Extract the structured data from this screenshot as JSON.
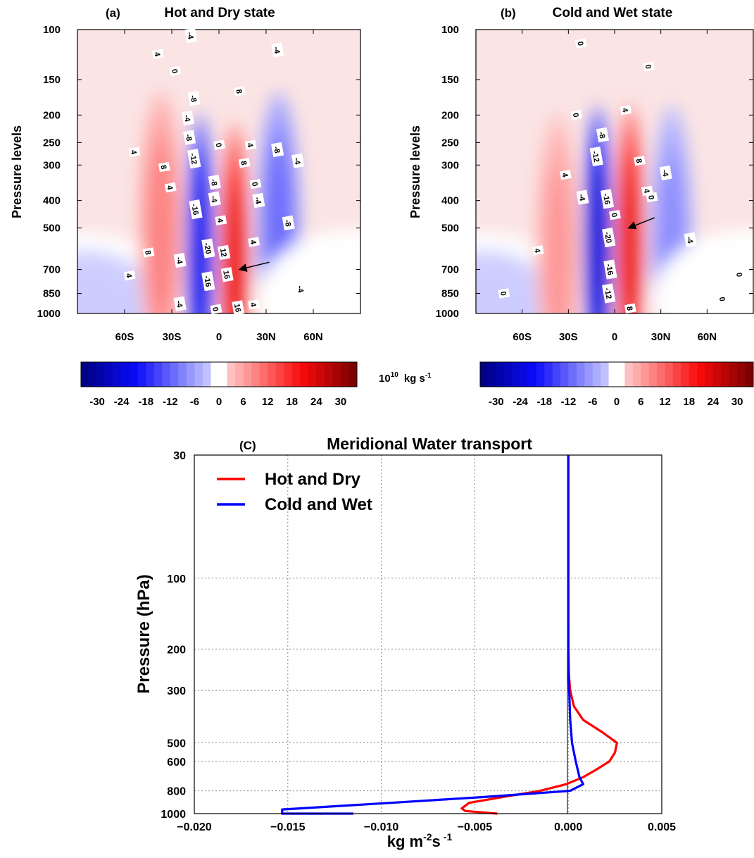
{
  "figure": {
    "colorbar_units": "10",
    "colorbar_units_exp": "10",
    "colorbar_units_tail": "kg s",
    "colorbar_units_tail_exp": "-1"
  },
  "chart_data": [
    {
      "type": "heatmap",
      "panel": "(a)",
      "title": "Hot and Dry state",
      "ylabel": "Pressure levels",
      "x_ticks": [
        "60S",
        "30S",
        "0",
        "30N",
        "60N"
      ],
      "x_tick_values": [
        -60,
        -30,
        0,
        30,
        60
      ],
      "x_range": [
        -90,
        90
      ],
      "y_ticks": [
        100,
        150,
        200,
        250,
        300,
        400,
        500,
        700,
        850,
        1000
      ],
      "y_range": [
        100,
        1000
      ],
      "y_scale": "log",
      "cells": [
        {
          "lat": -85,
          "level": 925,
          "value": -2
        },
        {
          "lat": -37,
          "level": 500,
          "value": 9
        },
        {
          "lat": -12,
          "level": 600,
          "value": -22
        },
        {
          "lat": 10,
          "level": 650,
          "value": 22
        },
        {
          "lat": 38,
          "level": 500,
          "value": -11
        },
        {
          "lat": 85,
          "level": 900,
          "value": 1
        }
      ],
      "contour_labels": [
        {
          "text": "-4",
          "lat": -18,
          "level": 105
        },
        {
          "text": "4",
          "lat": -39,
          "level": 122
        },
        {
          "text": "0",
          "lat": -28,
          "level": 140
        },
        {
          "text": "-8",
          "lat": -16,
          "level": 175
        },
        {
          "text": "-4",
          "lat": -20,
          "level": 205
        },
        {
          "text": "-8",
          "lat": -19,
          "level": 240
        },
        {
          "text": "-12",
          "lat": -16,
          "level": 285
        },
        {
          "text": "-8",
          "lat": -3,
          "level": 345
        },
        {
          "text": "-4",
          "lat": -3,
          "level": 395
        },
        {
          "text": "-16",
          "lat": -15,
          "level": 430
        },
        {
          "text": "4",
          "lat": 1,
          "level": 470
        },
        {
          "text": "-20",
          "lat": -7,
          "level": 590
        },
        {
          "text": "12",
          "lat": 3,
          "level": 610
        },
        {
          "text": "-4",
          "lat": -25,
          "level": 650
        },
        {
          "text": "-16",
          "lat": -7,
          "level": 770
        },
        {
          "text": "16",
          "lat": 5,
          "level": 730
        },
        {
          "text": "-4",
          "lat": -25,
          "level": 925
        },
        {
          "text": "0",
          "lat": -2,
          "level": 965
        },
        {
          "text": "16",
          "lat": 12,
          "level": 955
        },
        {
          "text": "4",
          "lat": 22,
          "level": 930
        },
        {
          "text": "8",
          "lat": 13,
          "level": 165
        },
        {
          "text": "0",
          "lat": 0,
          "level": 255
        },
        {
          "text": "4",
          "lat": 20,
          "level": 255
        },
        {
          "text": "8",
          "lat": 16,
          "level": 295
        },
        {
          "text": "0",
          "lat": 23,
          "level": 350
        },
        {
          "text": "-4",
          "lat": 25,
          "level": 400
        },
        {
          "text": "4",
          "lat": 22,
          "level": 560
        },
        {
          "text": "-8",
          "lat": 37,
          "level": 265
        },
        {
          "text": "-4",
          "lat": 50,
          "level": 290
        },
        {
          "text": "-8",
          "lat": 44,
          "level": 480
        },
        {
          "text": "-4",
          "lat": 52,
          "level": 820
        },
        {
          "text": "-4",
          "lat": 37,
          "level": 118
        },
        {
          "text": "4",
          "lat": -54,
          "level": 270
        },
        {
          "text": "8",
          "lat": -35,
          "level": 305
        },
        {
          "text": "4",
          "lat": -31,
          "level": 360
        },
        {
          "text": "8",
          "lat": -45,
          "level": 610
        },
        {
          "text": "4",
          "lat": -57,
          "level": 735
        }
      ],
      "arrow": {
        "from": {
          "lat": 32,
          "level": 660
        },
        "to": {
          "lat": 13,
          "level": 700
        }
      }
    },
    {
      "type": "heatmap",
      "panel": "(b)",
      "title": "Cold and Wet state",
      "ylabel": "Pressure levels",
      "x_ticks": [
        "60S",
        "30S",
        "0",
        "30N",
        "60N"
      ],
      "x_tick_values": [
        -60,
        -30,
        0,
        30,
        60
      ],
      "x_range": [
        -90,
        90
      ],
      "y_ticks": [
        100,
        150,
        200,
        250,
        300,
        400,
        500,
        700,
        850,
        1000
      ],
      "y_range": [
        100,
        1000
      ],
      "y_scale": "log",
      "cells": [
        {
          "lat": -85,
          "level": 925,
          "value": -2
        },
        {
          "lat": -37,
          "level": 600,
          "value": 7
        },
        {
          "lat": -11,
          "level": 560,
          "value": -25
        },
        {
          "lat": 10,
          "level": 560,
          "value": 22
        },
        {
          "lat": 37,
          "level": 560,
          "value": -8
        },
        {
          "lat": 85,
          "level": 900,
          "value": 1
        }
      ],
      "contour_labels": [
        {
          "text": "0",
          "lat": -22,
          "level": 112
        },
        {
          "text": "0",
          "lat": 22,
          "level": 135
        },
        {
          "text": "0",
          "lat": -25,
          "level": 200
        },
        {
          "text": "4",
          "lat": 7,
          "level": 192
        },
        {
          "text": "-8",
          "lat": -8,
          "level": 235
        },
        {
          "text": "-12",
          "lat": -12,
          "level": 280
        },
        {
          "text": "8",
          "lat": 16,
          "level": 290
        },
        {
          "text": "-4",
          "lat": 33,
          "level": 320
        },
        {
          "text": "4",
          "lat": -32,
          "level": 325
        },
        {
          "text": "4",
          "lat": 21,
          "level": 370
        },
        {
          "text": "-16",
          "lat": -5,
          "level": 395
        },
        {
          "text": "0",
          "lat": 24,
          "level": 390
        },
        {
          "text": "-4",
          "lat": -21,
          "level": 390
        },
        {
          "text": "0",
          "lat": 0,
          "level": 450
        },
        {
          "text": "-20",
          "lat": -4,
          "level": 540
        },
        {
          "text": "-4",
          "lat": 49,
          "level": 550
        },
        {
          "text": "4",
          "lat": -50,
          "level": 600
        },
        {
          "text": "-16",
          "lat": -3,
          "level": 700
        },
        {
          "text": "-12",
          "lat": -4,
          "level": 850
        },
        {
          "text": "8",
          "lat": 10,
          "level": 960
        },
        {
          "text": "0",
          "lat": -72,
          "level": 850
        },
        {
          "text": "0",
          "lat": 81,
          "level": 730
        },
        {
          "text": "0",
          "lat": 70,
          "level": 890
        }
      ],
      "arrow": {
        "from": {
          "lat": 26,
          "level": 460
        },
        "to": {
          "lat": 9,
          "level": 500
        }
      }
    },
    {
      "type": "line",
      "panel": "(C)",
      "title": "Meridional Water transport",
      "xlabel": "kg m",
      "xlabel_exp1": "-2",
      "xlabel_mid": "s",
      "xlabel_exp2": "-1",
      "ylabel": "Pressure (hPa)",
      "xlim": [
        -0.02,
        0.005
      ],
      "ylim": [
        1000,
        30
      ],
      "y_scale": "log",
      "x_ticks": [
        "−0.020",
        "−0.015",
        "−0.010",
        "−0.005",
        "0.000",
        "0.005"
      ],
      "x_tick_values": [
        -0.02,
        -0.015,
        -0.01,
        -0.005,
        0,
        0.005
      ],
      "y_ticks": [
        30,
        100,
        200,
        300,
        500,
        600,
        800,
        1000
      ],
      "grid": true,
      "legend": "upper left",
      "series": [
        {
          "name": "Hot and Dry",
          "color": "#ff0000",
          "points": [
            [
              0,
              30
            ],
            [
              0,
              150
            ],
            [
              2e-05,
              250
            ],
            [
              0.0001,
              300
            ],
            [
              0.0003,
              350
            ],
            [
              0.0008,
              400
            ],
            [
              0.0018,
              450
            ],
            [
              0.0026,
              500
            ],
            [
              0.0025,
              550
            ],
            [
              0.0022,
              600
            ],
            [
              0.0015,
              650
            ],
            [
              0.0008,
              700
            ],
            [
              -0.0001,
              750
            ],
            [
              -0.0015,
              800
            ],
            [
              -0.0035,
              850
            ],
            [
              -0.0053,
              900
            ],
            [
              -0.0057,
              950
            ],
            [
              -0.0055,
              975
            ],
            [
              -0.0038,
              1000
            ]
          ]
        },
        {
          "name": "Cold and Wet",
          "color": "#0000ff",
          "points": [
            [
              0,
              30
            ],
            [
              0,
              200
            ],
            [
              5e-05,
              300
            ],
            [
              0.0001,
              400
            ],
            [
              0.0002,
              500
            ],
            [
              0.0004,
              600
            ],
            [
              0.0006,
              700
            ],
            [
              0.0008,
              750
            ],
            [
              0.0001,
              800
            ],
            [
              -0.0045,
              850
            ],
            [
              -0.0095,
              900
            ],
            [
              -0.0153,
              960
            ],
            [
              -0.0153,
              1000
            ],
            [
              -0.0115,
              1000
            ]
          ]
        }
      ]
    }
  ],
  "colorbar": {
    "ticks": [
      "-30",
      "-24",
      "-18",
      "-12",
      "-6",
      "0",
      "6",
      "12",
      "18",
      "24",
      "30"
    ],
    "min": -34,
    "max": 34,
    "step": 2
  }
}
